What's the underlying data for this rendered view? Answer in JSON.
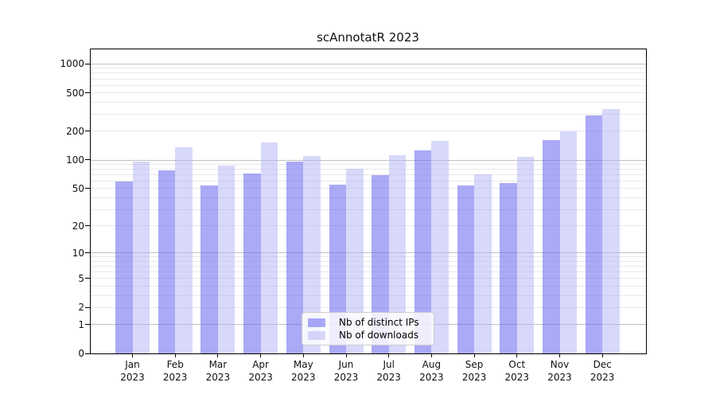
{
  "chart_data": {
    "type": "bar",
    "title": "scAnnotatR 2023",
    "x_axis": {
      "categories": [
        "Jan",
        "Feb",
        "Mar",
        "Apr",
        "May",
        "Jun",
        "Jul",
        "Aug",
        "Sep",
        "Oct",
        "Nov",
        "Dec"
      ],
      "year_label": "2023"
    },
    "y_axis": {
      "scale": "log1p",
      "ticks": [
        0,
        1,
        2,
        5,
        10,
        20,
        50,
        100,
        200,
        500,
        1000
      ],
      "range": [
        0,
        1430
      ],
      "grid": "major-and-minor"
    },
    "series": [
      {
        "name": "Nb of distinct IPs",
        "color": "rgba(100,100,238,0.55)",
        "color_effective_hex": "#aaaaf6",
        "values": [
          60,
          78,
          54,
          72,
          96,
          55,
          69,
          125,
          54,
          57,
          160,
          290
        ]
      },
      {
        "name": "Nb of downloads",
        "color": "rgba(177,177,246,0.5)",
        "color_effective_hex": "#d8d8fb",
        "values": [
          97,
          136,
          88,
          152,
          110,
          81,
          113,
          158,
          71,
          108,
          200,
          342
        ]
      }
    ],
    "legend_position": "lower center"
  }
}
